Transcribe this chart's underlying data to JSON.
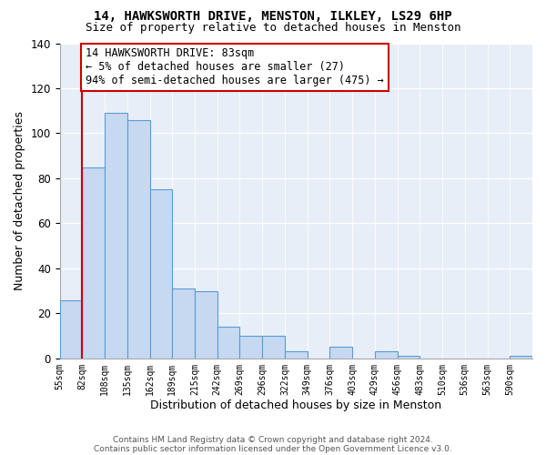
{
  "title1": "14, HAWKSWORTH DRIVE, MENSTON, ILKLEY, LS29 6HP",
  "title2": "Size of property relative to detached houses in Menston",
  "xlabel": "Distribution of detached houses by size in Menston",
  "ylabel": "Number of detached properties",
  "bin_labels": [
    "55sqm",
    "82sqm",
    "108sqm",
    "135sqm",
    "162sqm",
    "189sqm",
    "215sqm",
    "242sqm",
    "269sqm",
    "296sqm",
    "322sqm",
    "349sqm",
    "376sqm",
    "403sqm",
    "429sqm",
    "456sqm",
    "483sqm",
    "510sqm",
    "536sqm",
    "563sqm",
    "590sqm"
  ],
  "bar_heights": [
    26,
    85,
    109,
    106,
    75,
    31,
    30,
    14,
    10,
    10,
    3,
    0,
    5,
    0,
    3,
    1,
    0,
    0,
    0,
    0,
    1
  ],
  "bar_color": "#c6d9f1",
  "bar_edge_color": "#5b9bd5",
  "ylim": [
    0,
    140
  ],
  "yticks": [
    0,
    20,
    40,
    60,
    80,
    100,
    120,
    140
  ],
  "vline_x_index": 1,
  "vline_color": "#cc0000",
  "annotation_title": "14 HAWKSWORTH DRIVE: 83sqm",
  "annotation_line1": "← 5% of detached houses are smaller (27)",
  "annotation_line2": "94% of semi-detached houses are larger (475) →",
  "annotation_box_color": "#ffffff",
  "annotation_box_edge": "#cc0000",
  "footer1": "Contains HM Land Registry data © Crown copyright and database right 2024.",
  "footer2": "Contains public sector information licensed under the Open Government Licence v3.0.",
  "bg_color": "#e8eef7"
}
